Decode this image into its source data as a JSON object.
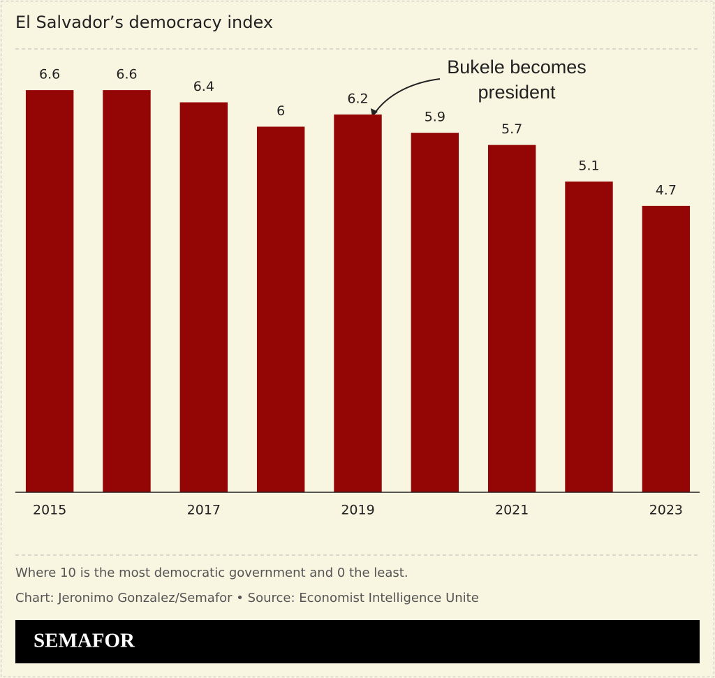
{
  "chart_data": {
    "type": "bar",
    "title": "El Salvador’s democracy index",
    "categories": [
      "2015",
      null,
      "2017",
      null,
      "2019",
      null,
      "2021",
      null,
      "2023"
    ],
    "values": [
      6.6,
      6.6,
      6.4,
      6,
      6.2,
      5.9,
      5.7,
      5.1,
      4.7
    ],
    "color": "#940606",
    "ylim": [
      0,
      7.3
    ],
    "annotation": "Bukele becomes president",
    "notes": [
      "Where 10 is the most democratic government and 0 the least.",
      "Chart: Jeronimo Gonzalez/Semafor • Source: Economist Intelligence Unite"
    ],
    "logo": "SEMAFOR"
  }
}
